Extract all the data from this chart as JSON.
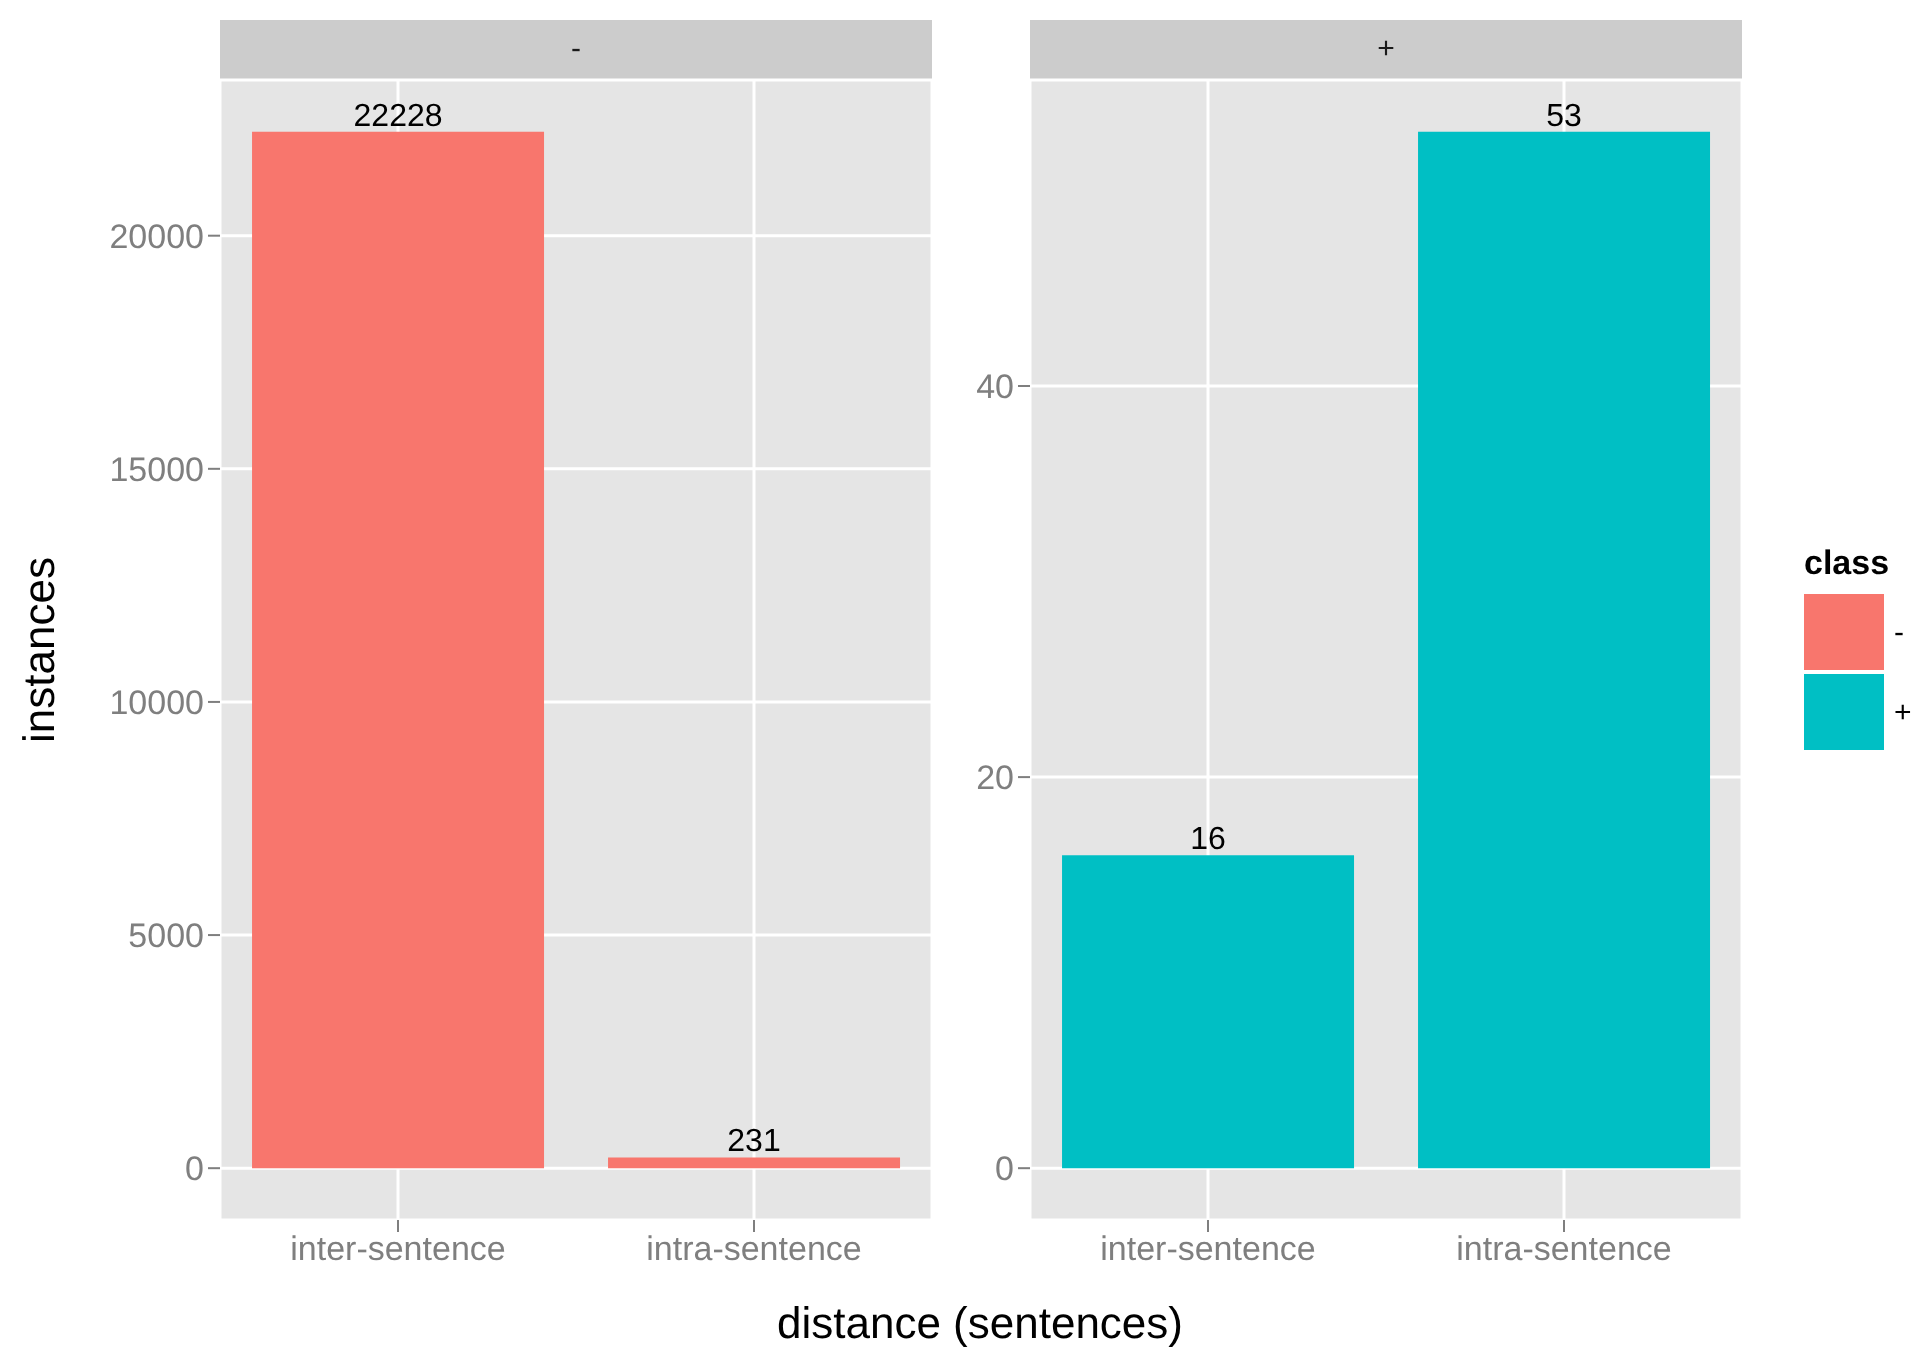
{
  "chart_data": [
    {
      "type": "bar",
      "title": "-",
      "xlabel": "distance (sentences)",
      "ylabel": "instances",
      "legend_title": "class",
      "legend": "right",
      "categories": [
        "inter-sentence",
        "intra-sentence"
      ],
      "series": [
        {
          "name": "-",
          "color": "#f8766d",
          "values": [
            22228,
            231
          ]
        }
      ],
      "ylim": [
        -1111.4,
        23339.4
      ],
      "yticks": [
        0,
        5000,
        10000,
        15000,
        20000
      ],
      "grid": true,
      "data_labels": true
    },
    {
      "type": "bar",
      "title": "+",
      "legend": "right",
      "categories": [
        "inter-sentence",
        "intra-sentence"
      ],
      "series": [
        {
          "name": "+",
          "color": "#00bfc4",
          "values": [
            16,
            53
          ]
        }
      ],
      "ylim": [
        -2.65,
        55.65
      ],
      "yticks": [
        0,
        20,
        40
      ],
      "grid": true,
      "data_labels": true
    }
  ]
}
